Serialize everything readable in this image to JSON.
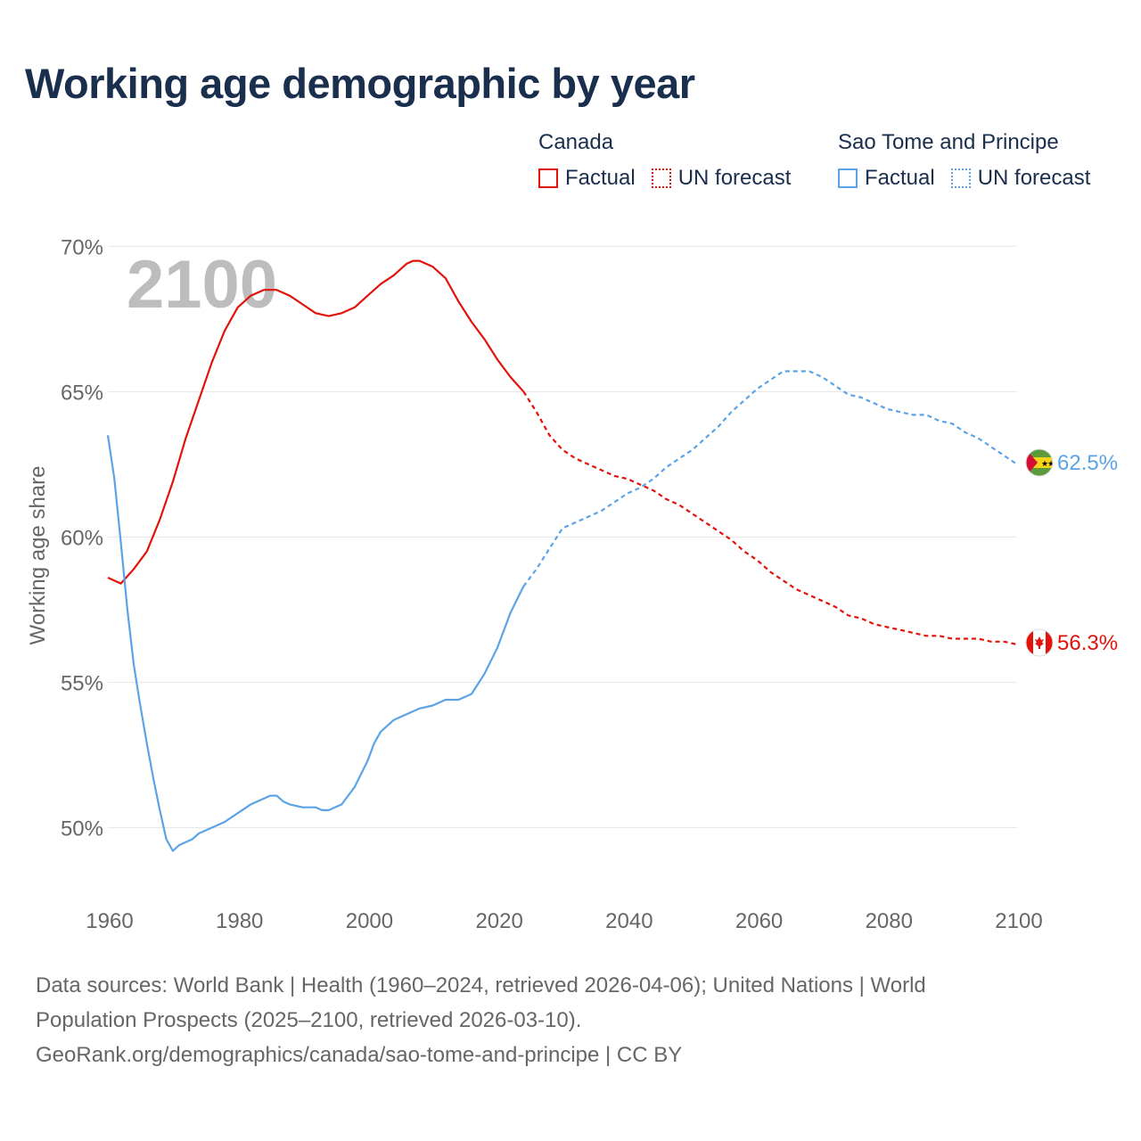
{
  "title": "Working age demographic by year",
  "legend": {
    "groups": [
      {
        "name": "Canada",
        "color": "#e3120b",
        "factual_label": "Factual",
        "forecast_label": "UN forecast"
      },
      {
        "name": "Sao Tome and Principe",
        "color": "#5ba3e6",
        "factual_label": "Factual",
        "forecast_label": "UN forecast"
      }
    ]
  },
  "year_overlay": "2100",
  "sources": {
    "line1": "Data sources: World Bank | Health (1960–2024, retrieved 2026-04-06); United Nations | World",
    "line2": "Population Prospects (2025–2100, retrieved 2026-03-10).",
    "line3": "GeoRank.org/demographics/canada/sao-tome-and-principe | CC BY"
  },
  "chart_data": {
    "type": "line",
    "title": "Working age demographic by year",
    "xlabel": "",
    "ylabel": "Working age share",
    "xlim": [
      1960,
      2100
    ],
    "ylim": [
      47.5,
      70.5
    ],
    "x_ticks": [
      1960,
      1980,
      2000,
      2020,
      2040,
      2060,
      2080,
      2100
    ],
    "y_ticks": [
      50,
      55,
      60,
      65,
      70
    ],
    "y_tick_labels": [
      "50%",
      "55%",
      "60%",
      "65%",
      "70%"
    ],
    "grid": true,
    "factual_until": 2024,
    "series": [
      {
        "name": "Canada",
        "color": "#e3120b",
        "end_label": "56.3%",
        "points": [
          [
            1960,
            58.6
          ],
          [
            1962,
            58.4
          ],
          [
            1964,
            58.9
          ],
          [
            1966,
            59.5
          ],
          [
            1968,
            60.6
          ],
          [
            1970,
            61.9
          ],
          [
            1972,
            63.4
          ],
          [
            1974,
            64.7
          ],
          [
            1976,
            66.0
          ],
          [
            1978,
            67.1
          ],
          [
            1980,
            67.9
          ],
          [
            1982,
            68.3
          ],
          [
            1984,
            68.5
          ],
          [
            1986,
            68.5
          ],
          [
            1988,
            68.3
          ],
          [
            1990,
            68.0
          ],
          [
            1992,
            67.7
          ],
          [
            1994,
            67.6
          ],
          [
            1996,
            67.7
          ],
          [
            1998,
            67.9
          ],
          [
            2000,
            68.3
          ],
          [
            2002,
            68.7
          ],
          [
            2004,
            69.0
          ],
          [
            2006,
            69.4
          ],
          [
            2007,
            69.5
          ],
          [
            2008,
            69.5
          ],
          [
            2010,
            69.3
          ],
          [
            2012,
            68.9
          ],
          [
            2014,
            68.1
          ],
          [
            2016,
            67.4
          ],
          [
            2018,
            66.8
          ],
          [
            2020,
            66.1
          ],
          [
            2022,
            65.5
          ],
          [
            2024,
            65.0
          ],
          [
            2026,
            64.3
          ],
          [
            2028,
            63.5
          ],
          [
            2030,
            63.0
          ],
          [
            2032,
            62.7
          ],
          [
            2034,
            62.5
          ],
          [
            2036,
            62.3
          ],
          [
            2038,
            62.1
          ],
          [
            2040,
            62.0
          ],
          [
            2042,
            61.8
          ],
          [
            2044,
            61.6
          ],
          [
            2046,
            61.3
          ],
          [
            2048,
            61.1
          ],
          [
            2050,
            60.8
          ],
          [
            2052,
            60.5
          ],
          [
            2054,
            60.2
          ],
          [
            2056,
            59.9
          ],
          [
            2058,
            59.5
          ],
          [
            2060,
            59.2
          ],
          [
            2062,
            58.8
          ],
          [
            2064,
            58.5
          ],
          [
            2066,
            58.2
          ],
          [
            2068,
            58.0
          ],
          [
            2070,
            57.8
          ],
          [
            2072,
            57.6
          ],
          [
            2074,
            57.3
          ],
          [
            2076,
            57.2
          ],
          [
            2078,
            57.0
          ],
          [
            2080,
            56.9
          ],
          [
            2082,
            56.8
          ],
          [
            2084,
            56.7
          ],
          [
            2086,
            56.6
          ],
          [
            2088,
            56.6
          ],
          [
            2090,
            56.5
          ],
          [
            2092,
            56.5
          ],
          [
            2094,
            56.5
          ],
          [
            2096,
            56.4
          ],
          [
            2098,
            56.4
          ],
          [
            2100,
            56.3
          ]
        ]
      },
      {
        "name": "Sao Tome and Principe",
        "color": "#5ba3e6",
        "end_label": "62.5%",
        "points": [
          [
            1960,
            63.5
          ],
          [
            1961,
            62.0
          ],
          [
            1962,
            59.8
          ],
          [
            1963,
            57.5
          ],
          [
            1964,
            55.6
          ],
          [
            1965,
            54.2
          ],
          [
            1966,
            52.9
          ],
          [
            1967,
            51.7
          ],
          [
            1968,
            50.6
          ],
          [
            1969,
            49.6
          ],
          [
            1970,
            49.2
          ],
          [
            1971,
            49.4
          ],
          [
            1972,
            49.5
          ],
          [
            1973,
            49.6
          ],
          [
            1974,
            49.8
          ],
          [
            1976,
            50.0
          ],
          [
            1978,
            50.2
          ],
          [
            1980,
            50.5
          ],
          [
            1982,
            50.8
          ],
          [
            1984,
            51.0
          ],
          [
            1985,
            51.1
          ],
          [
            1986,
            51.1
          ],
          [
            1987,
            50.9
          ],
          [
            1988,
            50.8
          ],
          [
            1990,
            50.7
          ],
          [
            1992,
            50.7
          ],
          [
            1993,
            50.6
          ],
          [
            1994,
            50.6
          ],
          [
            1996,
            50.8
          ],
          [
            1998,
            51.4
          ],
          [
            2000,
            52.3
          ],
          [
            2001,
            52.9
          ],
          [
            2002,
            53.3
          ],
          [
            2004,
            53.7
          ],
          [
            2006,
            53.9
          ],
          [
            2008,
            54.1
          ],
          [
            2010,
            54.2
          ],
          [
            2012,
            54.4
          ],
          [
            2014,
            54.4
          ],
          [
            2016,
            54.6
          ],
          [
            2018,
            55.3
          ],
          [
            2020,
            56.2
          ],
          [
            2022,
            57.4
          ],
          [
            2024,
            58.3
          ],
          [
            2026,
            58.9
          ],
          [
            2028,
            59.6
          ],
          [
            2030,
            60.3
          ],
          [
            2032,
            60.5
          ],
          [
            2034,
            60.7
          ],
          [
            2036,
            60.9
          ],
          [
            2038,
            61.2
          ],
          [
            2040,
            61.5
          ],
          [
            2042,
            61.7
          ],
          [
            2044,
            62.0
          ],
          [
            2046,
            62.4
          ],
          [
            2048,
            62.7
          ],
          [
            2050,
            63.0
          ],
          [
            2052,
            63.4
          ],
          [
            2054,
            63.8
          ],
          [
            2056,
            64.3
          ],
          [
            2058,
            64.7
          ],
          [
            2060,
            65.1
          ],
          [
            2062,
            65.4
          ],
          [
            2064,
            65.7
          ],
          [
            2066,
            65.7
          ],
          [
            2068,
            65.7
          ],
          [
            2070,
            65.5
          ],
          [
            2072,
            65.2
          ],
          [
            2074,
            64.9
          ],
          [
            2076,
            64.8
          ],
          [
            2078,
            64.6
          ],
          [
            2080,
            64.4
          ],
          [
            2082,
            64.3
          ],
          [
            2084,
            64.2
          ],
          [
            2086,
            64.2
          ],
          [
            2088,
            64.0
          ],
          [
            2090,
            63.9
          ],
          [
            2092,
            63.6
          ],
          [
            2094,
            63.4
          ],
          [
            2096,
            63.1
          ],
          [
            2098,
            62.8
          ],
          [
            2100,
            62.5
          ]
        ]
      }
    ]
  }
}
